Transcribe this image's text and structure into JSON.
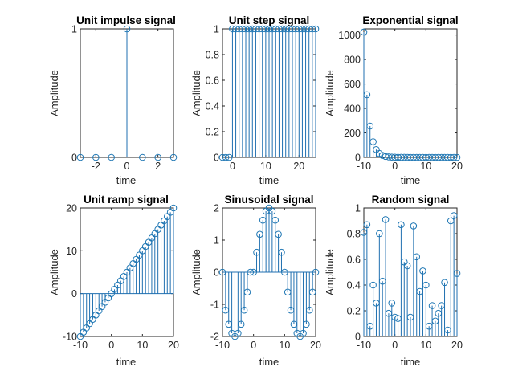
{
  "colors": {
    "series": "#0072BD",
    "axes": "#262626",
    "background": "#ffffff"
  },
  "chart_data": [
    {
      "type": "scatter",
      "style": "stem",
      "title": "Unit impulse signal",
      "xlabel": "time",
      "ylabel": "Amplitude",
      "xlim": [
        -3,
        3
      ],
      "ylim": [
        0,
        1
      ],
      "xticks": [
        -2,
        0,
        2
      ],
      "yticks": [
        0,
        1
      ],
      "x": [
        -3,
        -2,
        -1,
        0,
        1,
        2,
        3
      ],
      "y": [
        0,
        0,
        0,
        1,
        0,
        0,
        0
      ]
    },
    {
      "type": "scatter",
      "style": "stem",
      "title": "Unit step signal",
      "xlabel": "time",
      "ylabel": "Amplitude",
      "xlim": [
        -3,
        25
      ],
      "ylim": [
        0,
        1
      ],
      "xticks": [
        0,
        10,
        20
      ],
      "yticks": [
        0,
        0.2,
        0.4,
        0.6,
        0.8,
        1
      ],
      "x": [
        -3,
        -2,
        -1,
        0,
        1,
        2,
        3,
        4,
        5,
        6,
        7,
        8,
        9,
        10,
        11,
        12,
        13,
        14,
        15,
        16,
        17,
        18,
        19,
        20,
        21,
        22,
        23,
        24,
        25
      ],
      "y": [
        0,
        0,
        0,
        1,
        1,
        1,
        1,
        1,
        1,
        1,
        1,
        1,
        1,
        1,
        1,
        1,
        1,
        1,
        1,
        1,
        1,
        1,
        1,
        1,
        1,
        1,
        1,
        1,
        1
      ]
    },
    {
      "type": "scatter",
      "style": "stem",
      "title": "Exponential signal",
      "xlabel": "time",
      "ylabel": "Amplitude",
      "xlim": [
        -10,
        20
      ],
      "ylim": [
        0,
        1050
      ],
      "xticks": [
        -10,
        0,
        10,
        20
      ],
      "yticks": [
        0,
        200,
        400,
        600,
        800,
        1000
      ],
      "x": [
        -10,
        -9,
        -8,
        -7,
        -6,
        -5,
        -4,
        -3,
        -2,
        -1,
        0,
        1,
        2,
        3,
        4,
        5,
        6,
        7,
        8,
        9,
        10,
        11,
        12,
        13,
        14,
        15,
        16,
        17,
        18,
        19,
        20
      ],
      "y": [
        1024,
        512,
        256,
        128,
        64,
        32,
        16,
        8,
        4,
        2,
        1,
        0.5,
        0.25,
        0.13,
        0.06,
        0.03,
        0.02,
        0.01,
        0,
        0,
        0,
        0,
        0,
        0,
        0,
        0,
        0,
        0,
        0,
        0,
        0
      ]
    },
    {
      "type": "scatter",
      "style": "stem",
      "title": "Unit ramp signal",
      "xlabel": "time",
      "ylabel": "Amplitude",
      "xlim": [
        -10,
        20
      ],
      "ylim": [
        -10,
        20
      ],
      "xticks": [
        -10,
        0,
        10,
        20
      ],
      "yticks": [
        -10,
        0,
        10,
        20
      ],
      "x": [
        -10,
        -9,
        -8,
        -7,
        -6,
        -5,
        -4,
        -3,
        -2,
        -1,
        0,
        1,
        2,
        3,
        4,
        5,
        6,
        7,
        8,
        9,
        10,
        11,
        12,
        13,
        14,
        15,
        16,
        17,
        18,
        19,
        20
      ],
      "y": [
        -10,
        -9,
        -8,
        -7,
        -6,
        -5,
        -4,
        -3,
        -2,
        -1,
        0,
        1,
        2,
        3,
        4,
        5,
        6,
        7,
        8,
        9,
        10,
        11,
        12,
        13,
        14,
        15,
        16,
        17,
        18,
        19,
        20
      ]
    },
    {
      "type": "scatter",
      "style": "stem",
      "title": "Sinusoidal signal",
      "xlabel": "time",
      "ylabel": "Amplitude",
      "xlim": [
        -10,
        20
      ],
      "ylim": [
        -2,
        2
      ],
      "xticks": [
        -10,
        0,
        10,
        20
      ],
      "yticks": [
        -2,
        -1,
        0,
        1,
        2
      ],
      "x": [
        -10,
        -9,
        -8,
        -7,
        -6,
        -5,
        -4,
        -3,
        -2,
        -1,
        0,
        1,
        2,
        3,
        4,
        5,
        6,
        7,
        8,
        9,
        10,
        11,
        12,
        13,
        14,
        15,
        16,
        17,
        18,
        19,
        20
      ],
      "y": [
        0,
        -1.18,
        -1.62,
        -1.9,
        -2,
        -1.9,
        -1.62,
        -1.18,
        -0.62,
        0,
        0,
        0.62,
        1.18,
        1.62,
        1.9,
        2,
        1.9,
        1.62,
        1.18,
        0.62,
        0,
        -0.62,
        -1.18,
        -1.62,
        -1.9,
        -2,
        -1.9,
        -1.62,
        -1.18,
        -0.62,
        0
      ]
    },
    {
      "type": "scatter",
      "style": "stem",
      "title": "Random signal",
      "xlabel": "time",
      "ylabel": "Amplitude",
      "xlim": [
        -10,
        20
      ],
      "ylim": [
        0,
        1
      ],
      "xticks": [
        -10,
        0,
        10,
        20
      ],
      "yticks": [
        0,
        0.2,
        0.4,
        0.6,
        0.8,
        1
      ],
      "x": [
        -10,
        -9,
        -8,
        -7,
        -6,
        -5,
        -4,
        -3,
        -2,
        -1,
        0,
        1,
        2,
        3,
        4,
        5,
        6,
        7,
        8,
        9,
        10,
        11,
        12,
        13,
        14,
        15,
        16,
        17,
        18,
        19,
        20
      ],
      "y": [
        0.81,
        0.87,
        0.08,
        0.4,
        0.26,
        0.8,
        0.43,
        0.91,
        0.18,
        0.26,
        0.15,
        0.14,
        0.87,
        0.58,
        0.55,
        0.15,
        0.86,
        0.62,
        0.35,
        0.51,
        0.4,
        0.08,
        0.24,
        0.12,
        0.18,
        0.24,
        0.42,
        0.05,
        0.9,
        0.94,
        0.49
      ]
    }
  ]
}
